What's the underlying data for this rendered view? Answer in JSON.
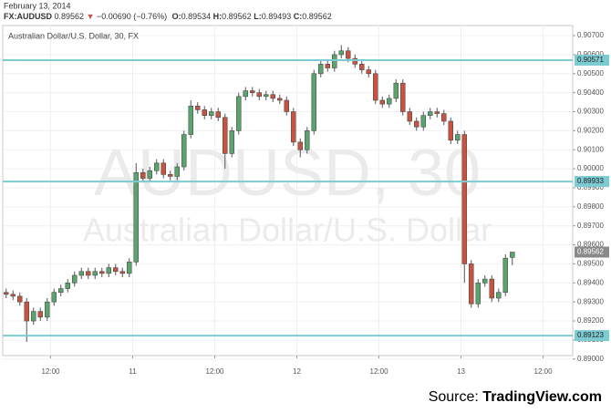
{
  "date": "February 13, 2014",
  "chart_data": {
    "type": "candlestick",
    "symbol": "FX:AUDUSD",
    "change_marker": "▼",
    "change": "−0.00690 (−0.76%)",
    "ohlc_labels": [
      "O:",
      "H:",
      "L:",
      "C:"
    ],
    "title": "Australian Dollar/U.S. Dollar, 30, FX",
    "watermark": [
      "AUDUSD, 30",
      "Australian Dollar/U.S. Dollar"
    ],
    "x": [
      -6.5,
      -5.5,
      -4.5,
      -3.5,
      -2.5,
      -1.5,
      -0.5,
      0.5,
      1.5,
      2.5,
      3.5,
      4.5,
      5.5,
      6.5,
      7.5,
      8.5,
      9.5,
      10.5,
      11.5,
      12.5,
      13.5,
      14.5,
      15.5,
      16.5,
      17.5,
      18.5,
      19.5,
      20.5,
      21.5,
      22.5,
      23.5,
      24.5,
      25.5,
      26.5,
      27.5,
      28.5,
      29.5,
      30.5,
      31.5,
      32.5,
      33.5,
      34.5,
      35.5,
      36.5,
      37.5,
      38.5,
      39.5,
      40.5,
      41.5,
      42.5,
      43.5,
      44.5,
      45.5,
      46.5,
      47.5,
      48.5,
      49.5,
      50.5,
      51.5,
      52.5,
      53.5,
      54.5,
      55.5,
      56.5,
      57.5,
      58.5,
      59.5,
      60.5,
      61.5,
      62.5,
      63.5,
      64.5,
      65.5,
      66.5,
      67.5
    ],
    "open": [
      0.8935,
      0.8934,
      0.8933,
      0.893,
      0.892,
      0.8925,
      0.8922,
      0.893,
      0.8935,
      0.8937,
      0.894,
      0.8944,
      0.8946,
      0.8944,
      0.8946,
      0.8945,
      0.8948,
      0.8946,
      0.8945,
      0.8951,
      0.8998,
      0.8995,
      0.8999,
      0.9003,
      0.8997,
      0.8996,
      0.9001,
      0.9018,
      0.9033,
      0.9031,
      0.9028,
      0.903,
      0.9027,
      0.9008,
      0.902,
      0.9038,
      0.9041,
      0.904,
      0.9038,
      0.9039,
      0.9037,
      0.9036,
      0.903,
      0.9014,
      0.901,
      0.902,
      0.905,
      0.9055,
      0.9053,
      0.906,
      0.9062,
      0.9058,
      0.9055,
      0.9052,
      0.905,
      0.9036,
      0.9034,
      0.9037,
      0.9045,
      0.903,
      0.9025,
      0.9022,
      0.9028,
      0.903,
      0.9029,
      0.9025,
      0.9015,
      0.9018,
      0.895,
      0.8929,
      0.894,
      0.8942,
      0.8932,
      0.8935,
      0.89534
    ],
    "high": [
      0.8937,
      0.8936,
      0.8935,
      0.8932,
      0.8927,
      0.8927,
      0.8932,
      0.8937,
      0.8939,
      0.8942,
      0.8946,
      0.8948,
      0.8948,
      0.8948,
      0.8948,
      0.895,
      0.895,
      0.8948,
      0.8953,
      0.9003,
      0.9,
      0.9001,
      0.9005,
      0.9005,
      0.8999,
      0.9003,
      0.902,
      0.9036,
      0.9035,
      0.9033,
      0.9032,
      0.9032,
      0.9029,
      0.9022,
      0.904,
      0.9043,
      0.9043,
      0.9042,
      0.9041,
      0.9041,
      0.9039,
      0.9038,
      0.9032,
      0.9016,
      0.9022,
      0.9052,
      0.9057,
      0.9057,
      0.9062,
      0.9065,
      0.9064,
      0.906,
      0.9057,
      0.9054,
      0.9052,
      0.9038,
      0.9039,
      0.9047,
      0.9047,
      0.9032,
      0.9027,
      0.903,
      0.9032,
      0.9032,
      0.9031,
      0.9027,
      0.902,
      0.902,
      0.8952,
      0.8942,
      0.8944,
      0.8944,
      0.8937,
      0.8955,
      0.89562
    ],
    "low": [
      0.8932,
      0.8931,
      0.8928,
      0.8909,
      0.8918,
      0.892,
      0.892,
      0.8928,
      0.8933,
      0.8935,
      0.8938,
      0.8942,
      0.8942,
      0.8942,
      0.8943,
      0.8943,
      0.8944,
      0.8943,
      0.8943,
      0.8949,
      0.8993,
      0.8993,
      0.8997,
      0.8995,
      0.8994,
      0.8994,
      0.8999,
      0.9016,
      0.9029,
      0.9026,
      0.9026,
      0.9025,
      0.9,
      0.9006,
      0.9018,
      0.9036,
      0.9038,
      0.9036,
      0.9036,
      0.9035,
      0.9034,
      0.9028,
      0.9012,
      0.9006,
      0.9008,
      0.9018,
      0.9048,
      0.9051,
      0.9051,
      0.9058,
      0.9056,
      0.9053,
      0.905,
      0.9048,
      0.9034,
      0.9032,
      0.9032,
      0.9035,
      0.9028,
      0.9023,
      0.902,
      0.902,
      0.9026,
      0.9027,
      0.9023,
      0.9013,
      0.9013,
      0.894,
      0.8927,
      0.8927,
      0.8938,
      0.893,
      0.893,
      0.8933,
      0.89493
    ],
    "close": [
      0.8934,
      0.8933,
      0.893,
      0.892,
      0.8925,
      0.8922,
      0.893,
      0.8935,
      0.8937,
      0.894,
      0.8944,
      0.8946,
      0.8944,
      0.8946,
      0.8945,
      0.8948,
      0.8946,
      0.8945,
      0.8951,
      0.8998,
      0.8995,
      0.8999,
      0.9003,
      0.8997,
      0.8996,
      0.9001,
      0.9018,
      0.9033,
      0.9031,
      0.9028,
      0.903,
      0.9027,
      0.9008,
      0.902,
      0.9038,
      0.9041,
      0.904,
      0.9038,
      0.9039,
      0.9037,
      0.9036,
      0.903,
      0.9014,
      0.901,
      0.902,
      0.905,
      0.9055,
      0.9053,
      0.906,
      0.9062,
      0.9058,
      0.9055,
      0.9052,
      0.905,
      0.9036,
      0.9034,
      0.9037,
      0.9045,
      0.903,
      0.9025,
      0.9022,
      0.9028,
      0.903,
      0.9029,
      0.9025,
      0.9015,
      0.9018,
      0.895,
      0.8929,
      0.894,
      0.8942,
      0.8932,
      0.8935,
      0.8953,
      0.89562
    ],
    "up_color": "#5aa56e",
    "down_color": "#c9533f",
    "xlim": [
      -7,
      76.33
    ],
    "xticks": [
      {
        "value": 0,
        "label": "12:00"
      },
      {
        "value": 12,
        "label": "11"
      },
      {
        "value": 24,
        "label": "12:00"
      },
      {
        "value": 36,
        "label": "12"
      },
      {
        "value": 48,
        "label": "12:00"
      },
      {
        "value": 60,
        "label": "13"
      },
      {
        "value": 72,
        "label": "12:00"
      }
    ],
    "ylim": [
      0.89018,
      0.90753
    ],
    "yticks": [
      {
        "value": 0.89,
        "label": "0.89000"
      },
      {
        "value": 0.891,
        "label": "0.89100"
      },
      {
        "value": 0.892,
        "label": "0.89200"
      },
      {
        "value": 0.893,
        "label": "0.89300"
      },
      {
        "value": 0.894,
        "label": "0.89400"
      },
      {
        "value": 0.895,
        "label": "0.89500"
      },
      {
        "value": 0.896,
        "label": "0.89600"
      },
      {
        "value": 0.897,
        "label": "0.89700"
      },
      {
        "value": 0.898,
        "label": "0.89800"
      },
      {
        "value": 0.899,
        "label": "0.89900"
      },
      {
        "value": 0.9,
        "label": "0.90000"
      },
      {
        "value": 0.901,
        "label": "0.90100"
      },
      {
        "value": 0.902,
        "label": "0.90200"
      },
      {
        "value": 0.903,
        "label": "0.90300"
      },
      {
        "value": 0.904,
        "label": "0.90400"
      },
      {
        "value": 0.905,
        "label": "0.90500"
      },
      {
        "value": 0.906,
        "label": "0.90600"
      },
      {
        "value": 0.907,
        "label": "0.90700"
      }
    ],
    "levels": [
      0.90571,
      0.89933,
      0.89123
    ],
    "level_color": "#7ccbd1",
    "grid": true
  },
  "source_label": "Source:",
  "source_name": "TradingView.com"
}
